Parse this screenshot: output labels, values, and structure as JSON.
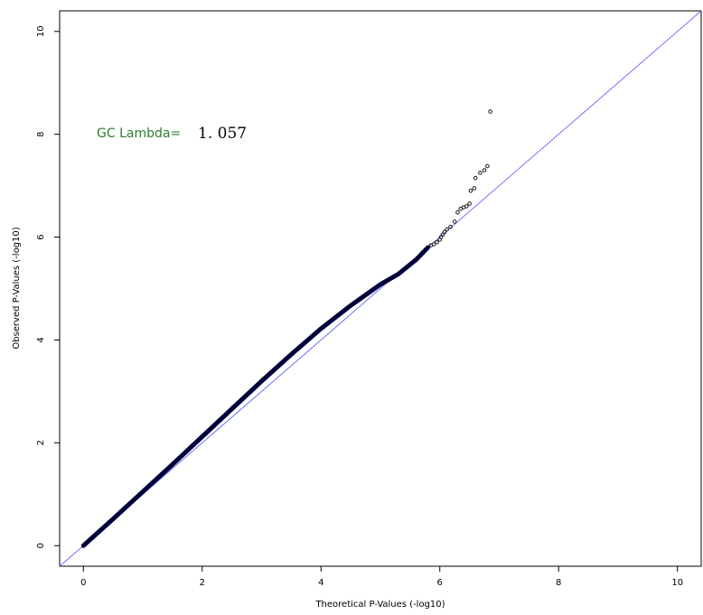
{
  "chart_data": {
    "type": "scatter",
    "xlabel": "Theoretical P-Values (-log10)",
    "ylabel": "Observed P-Values (-log10)",
    "xlim": [
      -0.4,
      10.4
    ],
    "ylim": [
      -0.4,
      10.4
    ],
    "x_ticks": [
      "0",
      "2",
      "4",
      "6",
      "8",
      "10"
    ],
    "y_ticks": [
      "0",
      "2",
      "4",
      "6",
      "8",
      "10"
    ],
    "grid": false,
    "annotation": {
      "label": "GC Lambda=",
      "value": "1. 057"
    },
    "colors": {
      "points": "#1a1a1a",
      "dense": "#00003a",
      "reference_line": "#6f6fff",
      "annotation": "#2e7d32"
    },
    "reference_line": {
      "from": [
        -0.4,
        -0.4
      ],
      "to": [
        10.4,
        10.4
      ]
    },
    "dense_trend": [
      [
        0.0,
        0.0
      ],
      [
        0.5,
        0.52
      ],
      [
        1.0,
        1.05
      ],
      [
        1.5,
        1.58
      ],
      [
        2.0,
        2.12
      ],
      [
        2.5,
        2.66
      ],
      [
        3.0,
        3.2
      ],
      [
        3.5,
        3.72
      ],
      [
        4.0,
        4.22
      ],
      [
        4.5,
        4.67
      ],
      [
        5.0,
        5.08
      ],
      [
        5.3,
        5.28
      ],
      [
        5.6,
        5.56
      ],
      [
        5.8,
        5.8
      ]
    ],
    "tail_points": [
      [
        5.85,
        5.84
      ],
      [
        5.9,
        5.86
      ],
      [
        5.95,
        5.9
      ],
      [
        6.0,
        5.95
      ],
      [
        6.02,
        6.0
      ],
      [
        6.05,
        6.05
      ],
      [
        6.08,
        6.1
      ],
      [
        6.12,
        6.15
      ],
      [
        6.18,
        6.2
      ],
      [
        6.25,
        6.3
      ],
      [
        6.3,
        6.48
      ],
      [
        6.35,
        6.55
      ],
      [
        6.4,
        6.58
      ],
      [
        6.45,
        6.6
      ],
      [
        6.5,
        6.65
      ],
      [
        6.52,
        6.9
      ],
      [
        6.58,
        6.95
      ],
      [
        6.6,
        7.15
      ],
      [
        6.68,
        7.25
      ],
      [
        6.75,
        7.3
      ],
      [
        6.8,
        7.38
      ],
      [
        6.85,
        8.44
      ]
    ]
  }
}
